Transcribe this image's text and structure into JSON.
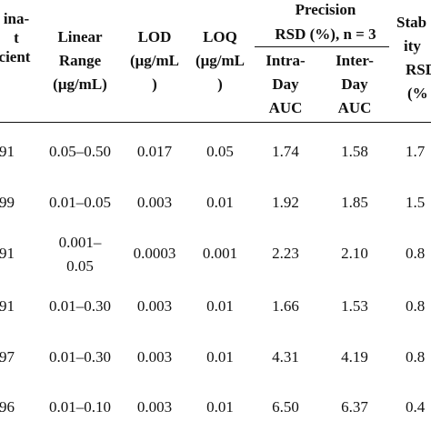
{
  "table": {
    "headers": {
      "determination": [
        "ina-",
        "t",
        "cient"
      ],
      "linear_range": [
        "Linear",
        "Range",
        "(μg/mL)"
      ],
      "lod": [
        "LOD",
        "(μg/mL",
        ")"
      ],
      "loq": [
        "LOQ",
        "(μg/mL",
        ")"
      ],
      "precision": [
        "Precision",
        "RSD (%), n = 3"
      ],
      "intra_day": [
        "Intra-",
        "Day",
        "AUC"
      ],
      "inter_day": [
        "Inter-",
        "Day",
        "AUC"
      ],
      "stability": [
        "Stab",
        "ity",
        "RSD",
        "(%"
      ]
    },
    "rows": [
      {
        "r2": "91",
        "range": [
          "0.05–0.50"
        ],
        "lod": "0.017",
        "loq": "0.05",
        "intra": "1.74",
        "inter": "1.58",
        "stab": "1.7"
      },
      {
        "r2": "99",
        "range": [
          "0.01–0.05"
        ],
        "lod": "0.003",
        "loq": "0.01",
        "intra": "1.92",
        "inter": "1.85",
        "stab": "1.5"
      },
      {
        "r2": "91",
        "range": [
          "0.001–",
          "0.05"
        ],
        "lod": "0.0003",
        "loq": "0.001",
        "intra": "2.23",
        "inter": "2.10",
        "stab": "0.8"
      },
      {
        "r2": "91",
        "range": [
          "0.01–0.30"
        ],
        "lod": "0.003",
        "loq": "0.01",
        "intra": "1.66",
        "inter": "1.53",
        "stab": "0.8"
      },
      {
        "r2": "97",
        "range": [
          "0.01–0.30"
        ],
        "lod": "0.003",
        "loq": "0.01",
        "intra": "4.31",
        "inter": "4.19",
        "stab": "0.8"
      },
      {
        "r2": "96",
        "range": [
          "0.01–0.10"
        ],
        "lod": "0.003",
        "loq": "0.01",
        "intra": "6.50",
        "inter": "6.37",
        "stab": "0.4"
      }
    ]
  }
}
